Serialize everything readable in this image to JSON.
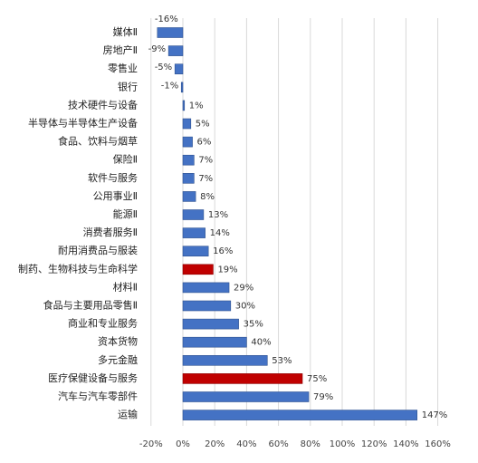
{
  "chart_data": {
    "type": "bar",
    "orientation": "horizontal",
    "categories": [
      "媒体Ⅱ",
      "房地产Ⅱ",
      "零售业",
      "银行",
      "技术硬件与设备",
      "半导体与半导体生产设备",
      "食品、饮料与烟草",
      "保险Ⅱ",
      "软件与服务",
      "公用事业Ⅱ",
      "能源Ⅱ",
      "消费者服务Ⅱ",
      "耐用消费品与服装",
      "制药、生物科技与生命科学",
      "材料Ⅱ",
      "食品与主要用品零售Ⅱ",
      "商业和专业服务",
      "资本货物",
      "多元金融",
      "医疗保健设备与服务",
      "汽车与汽车零部件",
      "运输"
    ],
    "values": [
      -16,
      -9,
      -5,
      -1,
      1,
      5,
      6,
      7,
      7,
      8,
      13,
      14,
      16,
      19,
      29,
      30,
      35,
      40,
      53,
      75,
      79,
      147
    ],
    "value_labels": [
      "-16%",
      "-9%",
      "-5%",
      "-1%",
      "1%",
      "5%",
      "6%",
      "7%",
      "7%",
      "8%",
      "13%",
      "14%",
      "16%",
      "19%",
      "29%",
      "30%",
      "35%",
      "40%",
      "53%",
      "75%",
      "79%",
      "147%"
    ],
    "highlighted": [
      "制药、生物科技与生命科学",
      "医疗保健设备与服务"
    ],
    "x_ticks": [
      "-20%",
      "0%",
      "20%",
      "40%",
      "60%",
      "80%",
      "100%",
      "120%",
      "140%",
      "160%"
    ],
    "xlim": [
      -20,
      160
    ],
    "grid": "vertical",
    "colors": {
      "bar": "#4472C4",
      "highlight": "#C00000",
      "grid": "#d9d9d9"
    },
    "title": "",
    "xlabel": "",
    "ylabel": ""
  }
}
